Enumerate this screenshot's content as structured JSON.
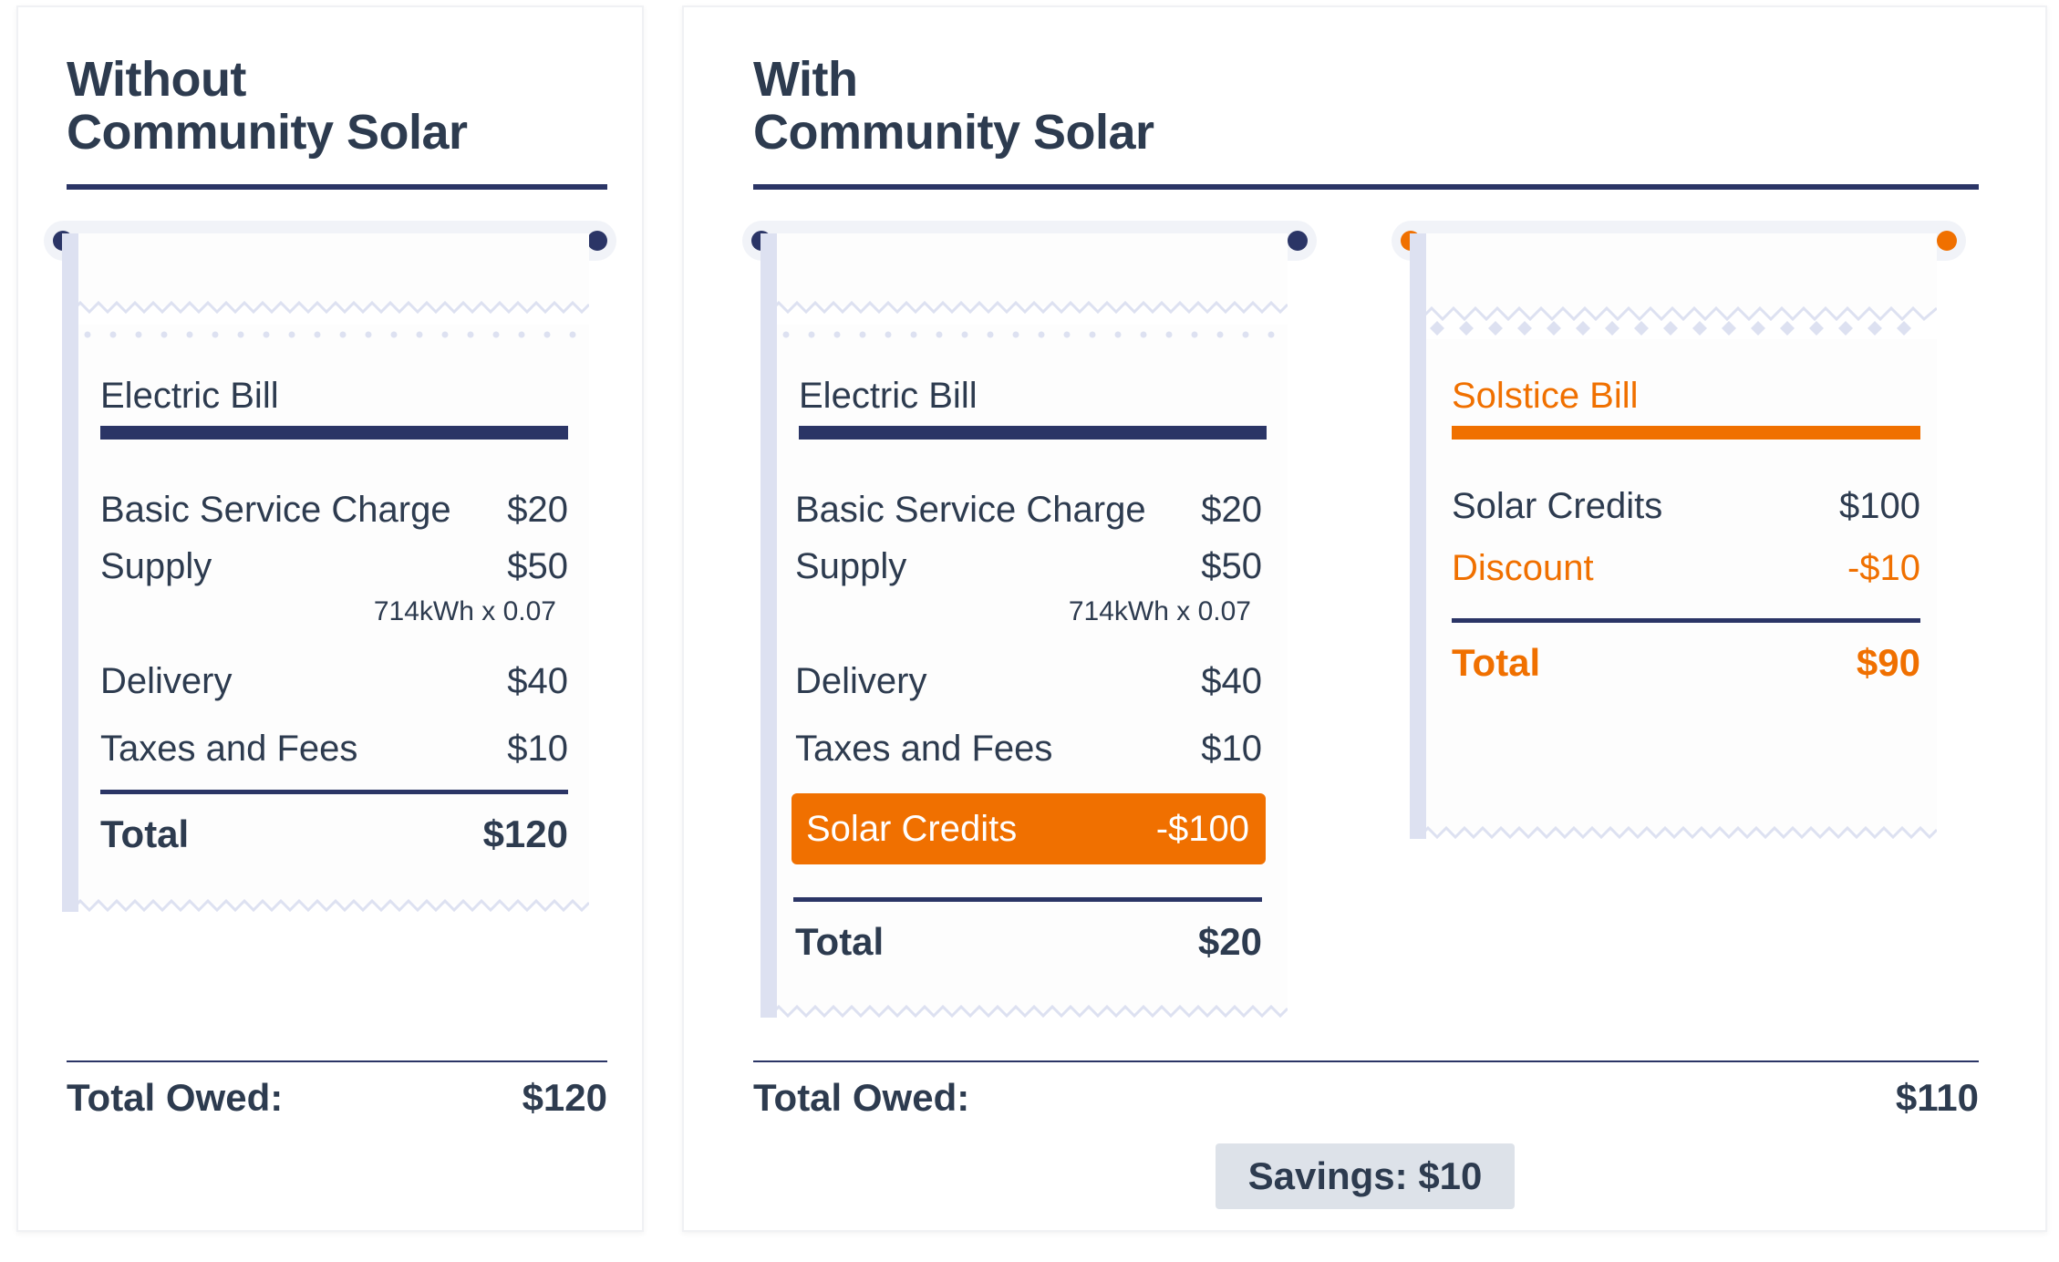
{
  "colors": {
    "navy": "#2b3566",
    "orange": "#f07000",
    "text": "#2d3b4f",
    "savings_bg": "#dde2e9"
  },
  "without": {
    "heading_line1": "Without",
    "heading_line2": "Community Solar",
    "bill": {
      "title": "Electric Bill",
      "rows": [
        {
          "label": "Basic Service Charge",
          "amount": "$20"
        },
        {
          "label": "Supply",
          "amount": "$50",
          "note": "714kWh x 0.07"
        },
        {
          "label": "Delivery",
          "amount": "$40"
        },
        {
          "label": "Taxes and Fees",
          "amount": "$10"
        }
      ],
      "total_label": "Total",
      "total_amount": "$120"
    },
    "owed_label": "Total Owed:",
    "owed_amount": "$120"
  },
  "with": {
    "heading_line1": "With",
    "heading_line2": "Community Solar",
    "electric_bill": {
      "title": "Electric Bill",
      "rows": [
        {
          "label": "Basic Service Charge",
          "amount": "$20"
        },
        {
          "label": "Supply",
          "amount": "$50",
          "note": "714kWh x 0.07"
        },
        {
          "label": "Delivery",
          "amount": "$40"
        },
        {
          "label": "Taxes and Fees",
          "amount": "$10"
        }
      ],
      "credit_label": "Solar Credits",
      "credit_amount": "-$100",
      "total_label": "Total",
      "total_amount": "$20"
    },
    "solstice_bill": {
      "title": "Solstice Bill",
      "rows": [
        {
          "label": "Solar Credits",
          "amount": "$100"
        },
        {
          "label": "Discount",
          "amount": "-$10"
        }
      ],
      "total_label": "Total",
      "total_amount": "$90"
    },
    "owed_label": "Total Owed:",
    "owed_amount": "$110",
    "savings": "Savings: $10"
  }
}
